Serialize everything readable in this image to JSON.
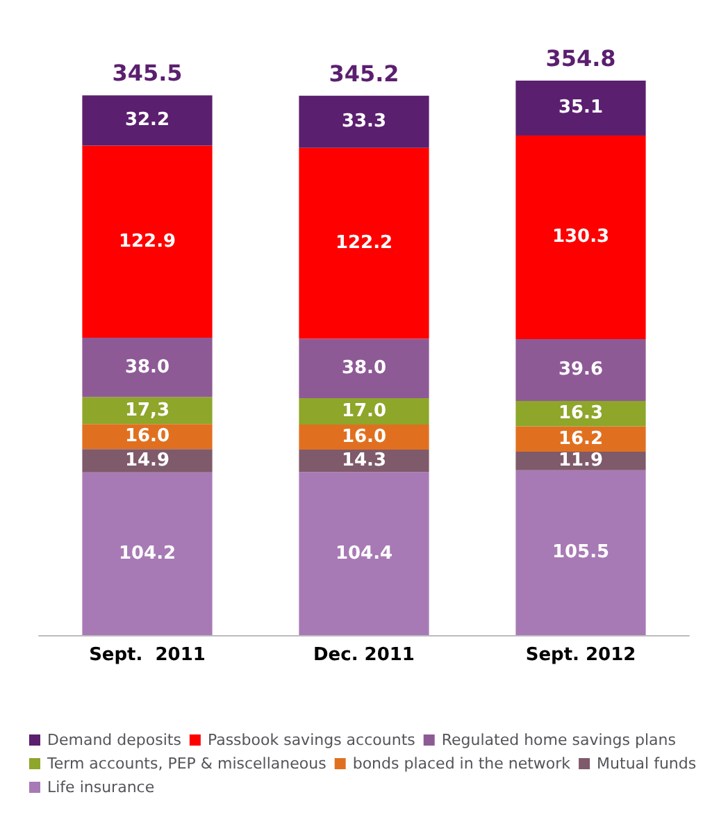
{
  "chart_data": {
    "type": "bar",
    "stacked": true,
    "categories": [
      "Sept.  2011",
      "Dec. 2011",
      "Sept. 2012"
    ],
    "legend": "bottom",
    "totals": [
      "345.5",
      "345.2",
      "354.8"
    ],
    "series": [
      {
        "name": "Life insurance",
        "color": "#a87ab5",
        "values": [
          104.2,
          104.4,
          105.5
        ],
        "value_labels": [
          "104.2",
          "104.4",
          "105.5"
        ]
      },
      {
        "name": "Mutual funds",
        "color": "#7f5a6b",
        "values": [
          14.9,
          14.3,
          11.9
        ],
        "value_labels": [
          "14.9",
          "14.3",
          "11.9"
        ]
      },
      {
        "name": "bonds placed in the network",
        "color": "#e07020",
        "values": [
          16.0,
          16.0,
          16.2
        ],
        "value_labels": [
          "16.0",
          "16.0",
          "16.2"
        ]
      },
      {
        "name": "Term accounts, PEP & miscellaneous",
        "color": "#8ea62a",
        "values": [
          17.3,
          17.0,
          16.3
        ],
        "value_labels": [
          "17,3",
          "17.0",
          "16.3"
        ]
      },
      {
        "name": "Regulated home savings plans",
        "color": "#8e5a96",
        "values": [
          38.0,
          38.0,
          39.6
        ],
        "value_labels": [
          "38.0",
          "38.0",
          "39.6"
        ]
      },
      {
        "name": "Passbook savings accounts",
        "color": "#ff0000",
        "values": [
          122.9,
          122.2,
          130.3
        ],
        "value_labels": [
          "122.9",
          "122.2",
          "130.3"
        ]
      },
      {
        "name": "Demand deposits",
        "color": "#5b1f6f",
        "values": [
          32.2,
          33.3,
          35.1
        ],
        "value_labels": [
          "32.2",
          "33.3",
          "35.1"
        ]
      }
    ]
  }
}
